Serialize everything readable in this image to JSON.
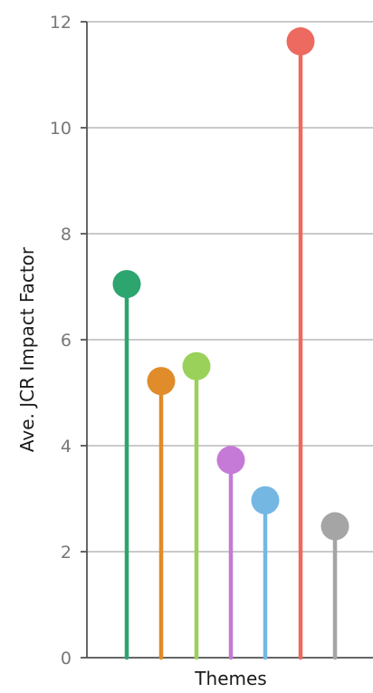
{
  "chart_data": {
    "type": "lollipop",
    "xlabel": "Themes",
    "ylabel": "Ave. JCR Impact Factor",
    "ylim": [
      0,
      12
    ],
    "yticks": [
      0,
      2,
      4,
      6,
      8,
      10,
      12
    ],
    "grid": true,
    "values": [
      7.05,
      5.22,
      5.5,
      3.73,
      2.97,
      11.63,
      2.48
    ],
    "colors": [
      "#2ca56f",
      "#e08c2a",
      "#9ad15a",
      "#c47ad6",
      "#74b7e3",
      "#ec6a5f",
      "#a5a5a5"
    ]
  }
}
